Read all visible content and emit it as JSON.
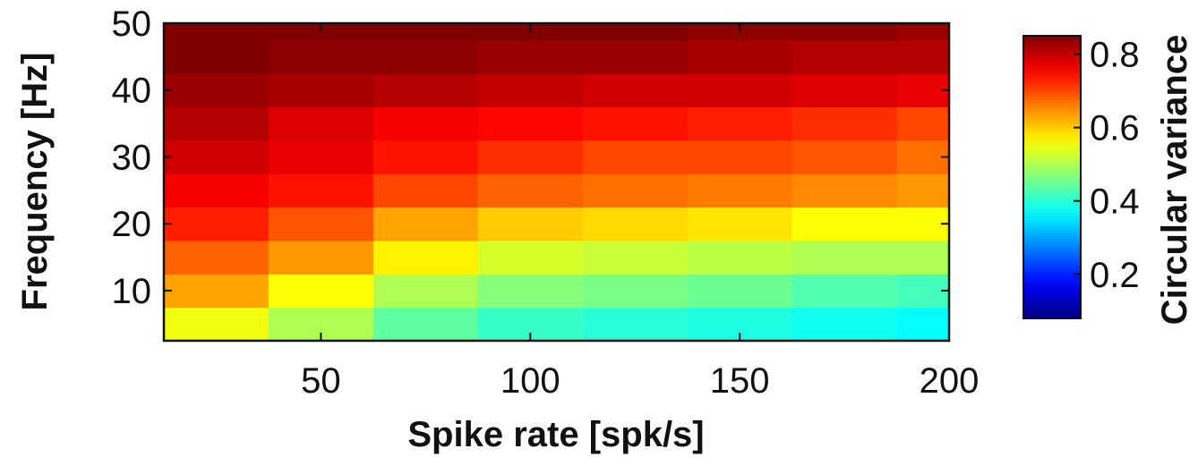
{
  "chart_data": {
    "type": "heatmap",
    "title": "",
    "xlabel": "Spike rate [spk/s]",
    "ylabel": "Frequency [Hz]",
    "colorbar_label": "Circular variance",
    "colormap": "jet",
    "x_centers": [
      25,
      50,
      75,
      100,
      125,
      150,
      175,
      200
    ],
    "y_centers": [
      5,
      10,
      15,
      20,
      25,
      30,
      35,
      40,
      45,
      50
    ],
    "xlim": [
      12.5,
      200
    ],
    "ylim": [
      2.5,
      50
    ],
    "clim": [
      0.08,
      0.85
    ],
    "x_ticks": [
      50,
      100,
      150,
      200
    ],
    "x_tick_labels": [
      "50",
      "100",
      "150",
      "200"
    ],
    "y_ticks": [
      10,
      20,
      30,
      40,
      50
    ],
    "y_tick_labels": [
      "10",
      "20",
      "30",
      "40",
      "50"
    ],
    "colorbar_ticks": [
      0.2,
      0.4,
      0.6,
      0.8
    ],
    "colorbar_tick_labels": [
      "0.2",
      "0.4",
      "0.6",
      "0.8"
    ],
    "values": [
      [
        0.55,
        0.5,
        0.44,
        0.41,
        0.4,
        0.39,
        0.38,
        0.37
      ],
      [
        0.63,
        0.56,
        0.5,
        0.47,
        0.46,
        0.45,
        0.43,
        0.42
      ],
      [
        0.68,
        0.64,
        0.57,
        0.53,
        0.52,
        0.51,
        0.5,
        0.5
      ],
      [
        0.73,
        0.69,
        0.63,
        0.6,
        0.59,
        0.58,
        0.56,
        0.56
      ],
      [
        0.76,
        0.74,
        0.7,
        0.68,
        0.67,
        0.66,
        0.65,
        0.64
      ],
      [
        0.79,
        0.77,
        0.74,
        0.72,
        0.7,
        0.7,
        0.69,
        0.67
      ],
      [
        0.81,
        0.78,
        0.76,
        0.75,
        0.74,
        0.73,
        0.72,
        0.7
      ],
      [
        0.83,
        0.82,
        0.81,
        0.8,
        0.79,
        0.79,
        0.78,
        0.77
      ],
      [
        0.85,
        0.84,
        0.84,
        0.83,
        0.83,
        0.82,
        0.81,
        0.81
      ],
      [
        0.86,
        0.86,
        0.85,
        0.85,
        0.85,
        0.84,
        0.84,
        0.83
      ]
    ]
  }
}
